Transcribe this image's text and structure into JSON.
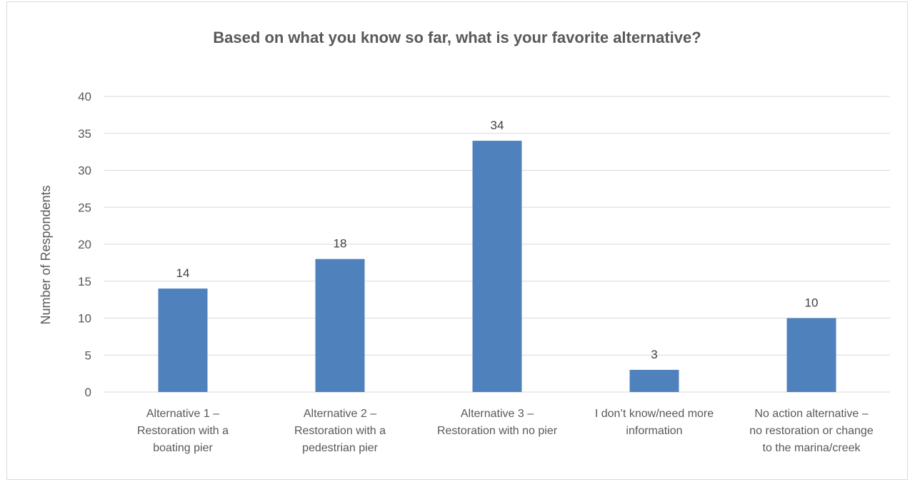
{
  "chart_data": {
    "type": "bar",
    "title": "Based on what you know so far, what is your favorite alternative?",
    "xlabel": "",
    "ylabel": "Number of Respondents",
    "ylim": [
      0,
      40
    ],
    "yticks": [
      "0",
      "5",
      "10",
      "15",
      "20",
      "25",
      "30",
      "35",
      "40"
    ],
    "grid": true,
    "legend": "none",
    "bar_color": "#4f81bd",
    "categories": [
      [
        "Alternative 1 –",
        "Restoration with a",
        "boating pier"
      ],
      [
        "Alternative 2 –",
        "Restoration with a",
        "pedestrian pier"
      ],
      [
        "Alternative 3 –",
        "Restoration with no pier"
      ],
      [
        "I don’t know/need more",
        "information"
      ],
      [
        "No action alternative –",
        "no restoration or change",
        "to the marina/creek"
      ]
    ],
    "values": [
      14,
      18,
      34,
      3,
      10
    ],
    "data_labels": [
      "14",
      "18",
      "34",
      "3",
      "10"
    ]
  }
}
